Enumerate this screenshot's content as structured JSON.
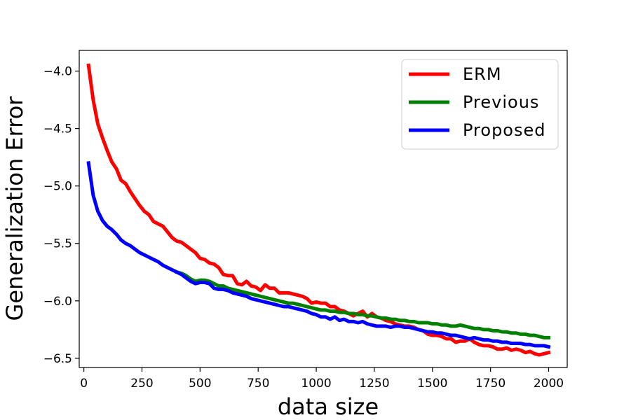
{
  "chart_data": {
    "type": "line",
    "title": "",
    "xlabel": "data size",
    "ylabel": "Generalization Error",
    "xlim": [
      -20,
      2080
    ],
    "ylim": [
      -6.58,
      -3.82
    ],
    "xticks": [
      0,
      250,
      500,
      750,
      1000,
      1250,
      1500,
      1750,
      2000
    ],
    "yticks": [
      -6.5,
      -6.0,
      -5.5,
      -5.0,
      -4.5,
      -4.0
    ],
    "xtick_labels": [
      "0",
      "250",
      "500",
      "750",
      "1000",
      "1250",
      "1500",
      "1750",
      "2000"
    ],
    "ytick_labels": [
      "−6.5",
      "−6.0",
      "−5.5",
      "−5.0",
      "−4.5",
      "−4.0"
    ],
    "grid": false,
    "legend_position": "top-right",
    "series": [
      {
        "name": "ERM",
        "color": "#ff0000",
        "points": [
          [
            20,
            -3.95
          ],
          [
            40,
            -4.25
          ],
          [
            60,
            -4.46
          ],
          [
            80,
            -4.58
          ],
          [
            100,
            -4.69
          ],
          [
            120,
            -4.79
          ],
          [
            140,
            -4.85
          ],
          [
            160,
            -4.95
          ],
          [
            180,
            -4.98
          ],
          [
            200,
            -5.05
          ],
          [
            220,
            -5.11
          ],
          [
            240,
            -5.17
          ],
          [
            260,
            -5.22
          ],
          [
            280,
            -5.25
          ],
          [
            300,
            -5.31
          ],
          [
            320,
            -5.33
          ],
          [
            340,
            -5.35
          ],
          [
            360,
            -5.4
          ],
          [
            380,
            -5.45
          ],
          [
            400,
            -5.48
          ],
          [
            420,
            -5.49
          ],
          [
            440,
            -5.52
          ],
          [
            460,
            -5.55
          ],
          [
            480,
            -5.58
          ],
          [
            500,
            -5.63
          ],
          [
            520,
            -5.64
          ],
          [
            540,
            -5.67
          ],
          [
            560,
            -5.68
          ],
          [
            580,
            -5.71
          ],
          [
            600,
            -5.77
          ],
          [
            620,
            -5.78
          ],
          [
            640,
            -5.78
          ],
          [
            660,
            -5.85
          ],
          [
            680,
            -5.86
          ],
          [
            700,
            -5.83
          ],
          [
            720,
            -5.87
          ],
          [
            740,
            -5.88
          ],
          [
            760,
            -5.91
          ],
          [
            780,
            -5.86
          ],
          [
            800,
            -5.89
          ],
          [
            820,
            -5.89
          ],
          [
            840,
            -5.93
          ],
          [
            860,
            -5.93
          ],
          [
            880,
            -5.93
          ],
          [
            900,
            -5.94
          ],
          [
            920,
            -5.95
          ],
          [
            940,
            -5.96
          ],
          [
            960,
            -5.98
          ],
          [
            980,
            -6.02
          ],
          [
            1000,
            -6.01
          ],
          [
            1020,
            -6.02
          ],
          [
            1040,
            -6.02
          ],
          [
            1060,
            -6.05
          ],
          [
            1080,
            -6.05
          ],
          [
            1100,
            -6.08
          ],
          [
            1120,
            -6.09
          ],
          [
            1140,
            -6.11
          ],
          [
            1160,
            -6.13
          ],
          [
            1180,
            -6.11
          ],
          [
            1200,
            -6.09
          ],
          [
            1220,
            -6.14
          ],
          [
            1240,
            -6.11
          ],
          [
            1260,
            -6.14
          ],
          [
            1280,
            -6.15
          ],
          [
            1300,
            -6.17
          ],
          [
            1320,
            -6.18
          ],
          [
            1340,
            -6.2
          ],
          [
            1360,
            -6.21
          ],
          [
            1380,
            -6.22
          ],
          [
            1400,
            -6.22
          ],
          [
            1420,
            -6.23
          ],
          [
            1440,
            -6.25
          ],
          [
            1460,
            -6.26
          ],
          [
            1480,
            -6.29
          ],
          [
            1500,
            -6.3
          ],
          [
            1520,
            -6.3
          ],
          [
            1540,
            -6.31
          ],
          [
            1560,
            -6.33
          ],
          [
            1580,
            -6.33
          ],
          [
            1600,
            -6.36
          ],
          [
            1620,
            -6.35
          ],
          [
            1640,
            -6.35
          ],
          [
            1660,
            -6.33
          ],
          [
            1680,
            -6.36
          ],
          [
            1700,
            -6.38
          ],
          [
            1720,
            -6.39
          ],
          [
            1740,
            -6.39
          ],
          [
            1760,
            -6.4
          ],
          [
            1780,
            -6.42
          ],
          [
            1800,
            -6.42
          ],
          [
            1820,
            -6.41
          ],
          [
            1840,
            -6.43
          ],
          [
            1860,
            -6.42
          ],
          [
            1880,
            -6.43
          ],
          [
            1900,
            -6.45
          ],
          [
            1920,
            -6.44
          ],
          [
            1940,
            -6.46
          ],
          [
            1960,
            -6.47
          ],
          [
            1980,
            -6.46
          ],
          [
            2000,
            -6.45
          ]
        ]
      },
      {
        "name": "Previous",
        "color": "#008000",
        "points": [
          [
            400,
            -5.75
          ],
          [
            420,
            -5.76
          ],
          [
            440,
            -5.78
          ],
          [
            460,
            -5.81
          ],
          [
            480,
            -5.83
          ],
          [
            500,
            -5.82
          ],
          [
            520,
            -5.82
          ],
          [
            540,
            -5.83
          ],
          [
            560,
            -5.85
          ],
          [
            580,
            -5.87
          ],
          [
            600,
            -5.87
          ],
          [
            620,
            -5.89
          ],
          [
            640,
            -5.9
          ],
          [
            660,
            -5.91
          ],
          [
            680,
            -5.92
          ],
          [
            700,
            -5.93
          ],
          [
            720,
            -5.94
          ],
          [
            740,
            -5.95
          ],
          [
            760,
            -5.96
          ],
          [
            780,
            -5.97
          ],
          [
            800,
            -5.98
          ],
          [
            820,
            -5.99
          ],
          [
            840,
            -6.0
          ],
          [
            860,
            -6.01
          ],
          [
            880,
            -6.02
          ],
          [
            900,
            -6.02
          ],
          [
            920,
            -6.03
          ],
          [
            940,
            -6.04
          ],
          [
            960,
            -6.05
          ],
          [
            980,
            -6.06
          ],
          [
            1000,
            -6.07
          ],
          [
            1020,
            -6.08
          ],
          [
            1040,
            -6.08
          ],
          [
            1060,
            -6.09
          ],
          [
            1080,
            -6.09
          ],
          [
            1100,
            -6.1
          ],
          [
            1120,
            -6.1
          ],
          [
            1140,
            -6.11
          ],
          [
            1160,
            -6.11
          ],
          [
            1180,
            -6.12
          ],
          [
            1200,
            -6.12
          ],
          [
            1220,
            -6.13
          ],
          [
            1240,
            -6.13
          ],
          [
            1260,
            -6.14
          ],
          [
            1280,
            -6.15
          ],
          [
            1300,
            -6.15
          ],
          [
            1320,
            -6.16
          ],
          [
            1340,
            -6.16
          ],
          [
            1360,
            -6.17
          ],
          [
            1380,
            -6.17
          ],
          [
            1400,
            -6.18
          ],
          [
            1420,
            -6.18
          ],
          [
            1440,
            -6.19
          ],
          [
            1460,
            -6.19
          ],
          [
            1480,
            -6.19
          ],
          [
            1500,
            -6.2
          ],
          [
            1520,
            -6.2
          ],
          [
            1540,
            -6.21
          ],
          [
            1560,
            -6.21
          ],
          [
            1580,
            -6.22
          ],
          [
            1600,
            -6.22
          ],
          [
            1620,
            -6.21
          ],
          [
            1640,
            -6.22
          ],
          [
            1660,
            -6.23
          ],
          [
            1680,
            -6.24
          ],
          [
            1700,
            -6.24
          ],
          [
            1720,
            -6.25
          ],
          [
            1740,
            -6.25
          ],
          [
            1760,
            -6.26
          ],
          [
            1780,
            -6.26
          ],
          [
            1800,
            -6.27
          ],
          [
            1820,
            -6.27
          ],
          [
            1840,
            -6.28
          ],
          [
            1860,
            -6.28
          ],
          [
            1880,
            -6.29
          ],
          [
            1900,
            -6.29
          ],
          [
            1920,
            -6.3
          ],
          [
            1940,
            -6.3
          ],
          [
            1960,
            -6.31
          ],
          [
            1980,
            -6.32
          ],
          [
            2000,
            -6.32
          ]
        ]
      },
      {
        "name": "Proposed",
        "color": "#0000ff",
        "points": [
          [
            20,
            -4.8
          ],
          [
            40,
            -5.08
          ],
          [
            60,
            -5.22
          ],
          [
            80,
            -5.3
          ],
          [
            100,
            -5.35
          ],
          [
            120,
            -5.38
          ],
          [
            140,
            -5.42
          ],
          [
            160,
            -5.47
          ],
          [
            180,
            -5.5
          ],
          [
            200,
            -5.52
          ],
          [
            220,
            -5.55
          ],
          [
            240,
            -5.58
          ],
          [
            260,
            -5.6
          ],
          [
            280,
            -5.62
          ],
          [
            300,
            -5.64
          ],
          [
            320,
            -5.66
          ],
          [
            340,
            -5.69
          ],
          [
            360,
            -5.71
          ],
          [
            380,
            -5.73
          ],
          [
            400,
            -5.75
          ],
          [
            420,
            -5.77
          ],
          [
            440,
            -5.8
          ],
          [
            460,
            -5.83
          ],
          [
            480,
            -5.85
          ],
          [
            500,
            -5.84
          ],
          [
            520,
            -5.84
          ],
          [
            540,
            -5.85
          ],
          [
            560,
            -5.89
          ],
          [
            580,
            -5.9
          ],
          [
            600,
            -5.9
          ],
          [
            620,
            -5.91
          ],
          [
            640,
            -5.93
          ],
          [
            660,
            -5.94
          ],
          [
            680,
            -5.95
          ],
          [
            700,
            -5.96
          ],
          [
            720,
            -5.98
          ],
          [
            740,
            -5.99
          ],
          [
            760,
            -6.0
          ],
          [
            780,
            -6.01
          ],
          [
            800,
            -6.02
          ],
          [
            820,
            -6.03
          ],
          [
            840,
            -6.04
          ],
          [
            860,
            -6.05
          ],
          [
            880,
            -6.05
          ],
          [
            900,
            -6.06
          ],
          [
            920,
            -6.07
          ],
          [
            940,
            -6.08
          ],
          [
            960,
            -6.09
          ],
          [
            980,
            -6.11
          ],
          [
            1000,
            -6.12
          ],
          [
            1020,
            -6.14
          ],
          [
            1040,
            -6.14
          ],
          [
            1060,
            -6.16
          ],
          [
            1080,
            -6.14
          ],
          [
            1100,
            -6.17
          ],
          [
            1120,
            -6.16
          ],
          [
            1140,
            -6.18
          ],
          [
            1160,
            -6.18
          ],
          [
            1180,
            -6.19
          ],
          [
            1200,
            -6.18
          ],
          [
            1220,
            -6.2
          ],
          [
            1240,
            -6.21
          ],
          [
            1260,
            -6.22
          ],
          [
            1280,
            -6.22
          ],
          [
            1300,
            -6.22
          ],
          [
            1320,
            -6.23
          ],
          [
            1340,
            -6.22
          ],
          [
            1360,
            -6.22
          ],
          [
            1380,
            -6.23
          ],
          [
            1400,
            -6.23
          ],
          [
            1420,
            -6.24
          ],
          [
            1440,
            -6.25
          ],
          [
            1460,
            -6.26
          ],
          [
            1480,
            -6.27
          ],
          [
            1500,
            -6.27
          ],
          [
            1520,
            -6.28
          ],
          [
            1540,
            -6.28
          ],
          [
            1560,
            -6.29
          ],
          [
            1580,
            -6.3
          ],
          [
            1600,
            -6.3
          ],
          [
            1620,
            -6.31
          ],
          [
            1640,
            -6.32
          ],
          [
            1660,
            -6.33
          ],
          [
            1680,
            -6.32
          ],
          [
            1700,
            -6.33
          ],
          [
            1720,
            -6.34
          ],
          [
            1740,
            -6.34
          ],
          [
            1760,
            -6.35
          ],
          [
            1780,
            -6.35
          ],
          [
            1800,
            -6.36
          ],
          [
            1820,
            -6.36
          ],
          [
            1840,
            -6.37
          ],
          [
            1860,
            -6.37
          ],
          [
            1880,
            -6.37
          ],
          [
            1900,
            -6.38
          ],
          [
            1920,
            -6.38
          ],
          [
            1940,
            -6.39
          ],
          [
            1960,
            -6.39
          ],
          [
            1980,
            -6.39
          ],
          [
            2000,
            -6.4
          ]
        ]
      }
    ]
  }
}
